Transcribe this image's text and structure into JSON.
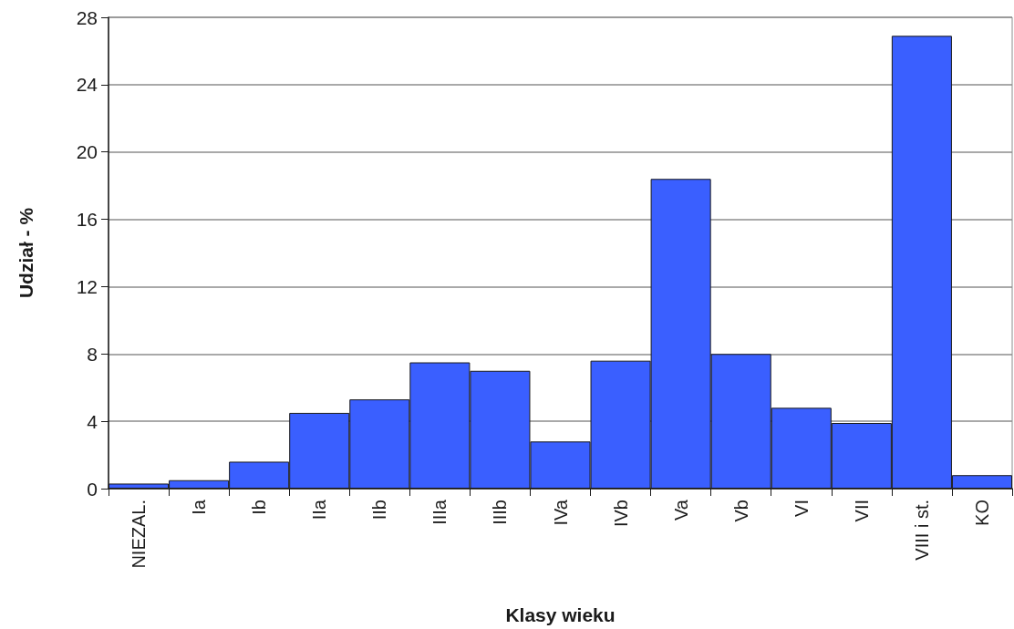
{
  "chart_data": {
    "type": "bar",
    "xlabel": "Klasy wieku",
    "ylabel": "Udział - %",
    "categories": [
      "NIEZAL.",
      "Ia",
      "Ib",
      "IIa",
      "IIb",
      "IIIa",
      "IIIb",
      "IVa",
      "IVb",
      "Va",
      "Vb",
      "VI",
      "VII",
      "VIII i st.",
      "KO"
    ],
    "values": [
      0.3,
      0.5,
      1.6,
      4.5,
      5.3,
      7.5,
      7.0,
      2.8,
      7.6,
      18.4,
      8.0,
      4.8,
      3.9,
      26.9,
      0.8
    ],
    "color": "#3a5fff",
    "ylim": [
      0,
      28
    ],
    "yticks": [
      0,
      4,
      8,
      12,
      16,
      20,
      24,
      28
    ],
    "grid": "y"
  }
}
